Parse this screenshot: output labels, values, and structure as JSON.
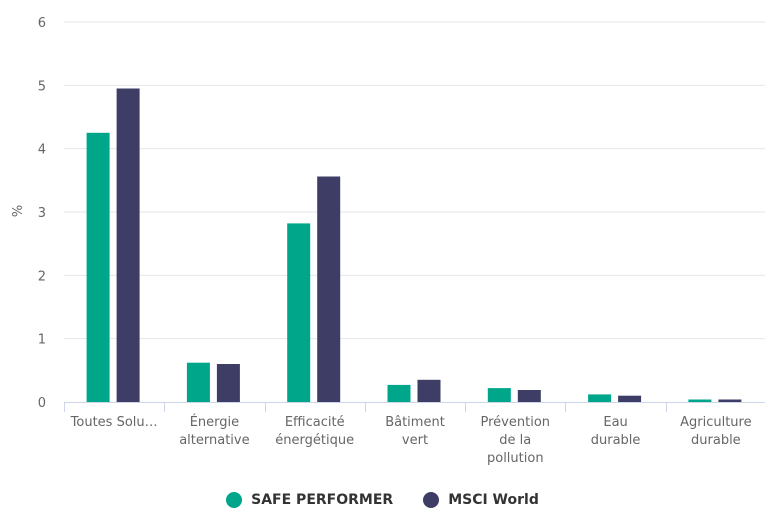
{
  "chart_data": {
    "type": "bar",
    "ylabel": "%",
    "ylim": [
      0,
      6
    ],
    "yticks": [
      0,
      1,
      2,
      3,
      4,
      5,
      6
    ],
    "grid": true,
    "legend_position": "bottom",
    "categories": [
      [
        "Toutes Solu…"
      ],
      [
        "Énergie",
        "alternative"
      ],
      [
        "Efficacité",
        "énergétique"
      ],
      [
        "Bâtiment",
        "vert"
      ],
      [
        "Prévention",
        "de la",
        "pollution"
      ],
      [
        "Eau",
        "durable"
      ],
      [
        "Agriculture",
        "durable"
      ]
    ],
    "series": [
      {
        "name": "SAFE PERFORMER",
        "color": "#00a68a",
        "values": [
          4.25,
          0.62,
          2.82,
          0.27,
          0.22,
          0.12,
          0.04
        ]
      },
      {
        "name": "MSCI World",
        "color": "#3d3d66",
        "values": [
          4.95,
          0.6,
          3.56,
          0.35,
          0.19,
          0.1,
          0.04
        ]
      }
    ]
  }
}
